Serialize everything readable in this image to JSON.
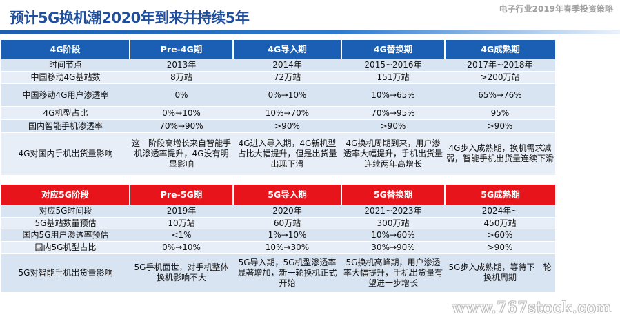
{
  "header": {
    "title": "预计5G换机潮2020年到来并持续5年",
    "report_name": "电子行业2019年春季投资策略"
  },
  "table_4g": {
    "headers": [
      "4G阶段",
      "Pre-4G期",
      "4G导入期",
      "4G替换期",
      "4G成熟期"
    ],
    "rows": [
      [
        "时间节点",
        "2013年",
        "2014年",
        "2015~2016年",
        "2017年~2018年"
      ],
      [
        "中国移动4G基站数",
        "8万站",
        "72万站",
        "151万站",
        ">200万站"
      ],
      [
        "中国移动4G用户渗透率",
        "0%",
        "0%→10%",
        "10%→65%",
        "65%→76%"
      ],
      [
        "4G机型占比",
        "0%→10%",
        "10%→70%",
        "70%→95%",
        "95%"
      ],
      [
        "国内智能手机渗透率",
        "70%→90%",
        ">90%",
        ">90%",
        ">90%"
      ],
      [
        "4G对国内手机出货量影响",
        "这一阶段高增长来自智能手机渗透率提升，4G没有明显影响",
        "4G进入导入期，4G新机型占比大幅提升，但是出货量出现下滑",
        "4G换机周期到来，用户渗透率大幅提升，手机出货量连续两年高增长",
        "4G步入成熟期，换机需求减弱，智能手机出货量连续下滑"
      ]
    ]
  },
  "table_5g": {
    "headers": [
      "对应5G阶段",
      "Pre-5G期",
      "5G导入期",
      "5G替换期",
      "5G成熟期"
    ],
    "rows": [
      [
        "对应5G时间段",
        "2019年",
        "2020年",
        "2021~2023年",
        "2024年~"
      ],
      [
        "5G基站数量预估",
        "10万站",
        "60万站",
        "300万站",
        "450万站"
      ],
      [
        "国内5G用户渗透率预估",
        "<1%",
        "1%→10%",
        "10%→60%",
        ">60%"
      ],
      [
        "国内5G机型占比",
        "0%→10%",
        "10%→30%",
        "30%→90%",
        ">90%"
      ],
      [
        "5G对智能手机出货量影响",
        "5G手机面世，对手机整体换机影响不大",
        "5G导入期，5G机型渗透率显著增加，新一轮换机正式开始",
        "5G换机高峰期，用户渗透率大幅提升，手机出货量有望进一步增长",
        "5G步入成熟期，等待下一轮换机周期"
      ]
    ]
  },
  "watermark": "www.767stock.com",
  "colors": {
    "title_blue": "#1f4e9c",
    "header_blue": "#1a5fb4",
    "header_red": "#e8141b",
    "row_light": "#e8eef7",
    "row_dark": "#d9e4f2"
  }
}
